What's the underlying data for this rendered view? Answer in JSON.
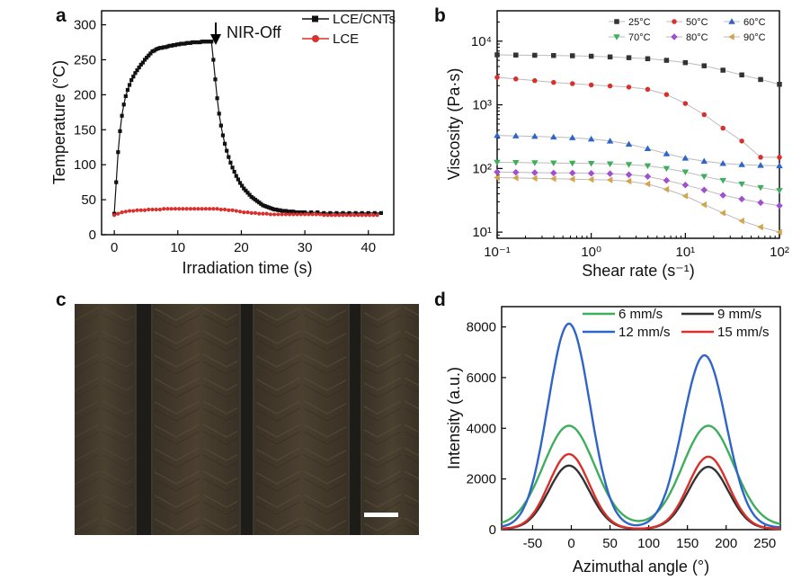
{
  "panels": {
    "a": {
      "letter": "a"
    },
    "b": {
      "letter": "b"
    },
    "c": {
      "letter": "c"
    },
    "d": {
      "letter": "d"
    }
  },
  "chart_data": [
    {
      "id": "a",
      "type": "line",
      "xlabel": "Irradiation time (s)",
      "ylabel": "Temperature (°C)",
      "xlim": [
        -2,
        44
      ],
      "ylim": [
        0,
        320
      ],
      "xticks": [
        "0",
        "10",
        "20",
        "30",
        "40"
      ],
      "yticks": [
        "0",
        "50",
        "100",
        "150",
        "200",
        "250",
        "300"
      ],
      "annotation": "NIR-Off",
      "legend_position": "top-right",
      "series": [
        {
          "name": "LCE/CNTs",
          "color": "#111111",
          "marker": "square",
          "x": [
            0,
            0.3,
            0.6,
            0.9,
            1.2,
            1.5,
            1.8,
            2.1,
            2.4,
            2.7,
            3.0,
            3.3,
            3.6,
            3.9,
            4.2,
            4.5,
            4.8,
            5.1,
            5.4,
            5.7,
            6.0,
            6.3,
            6.6,
            6.9,
            7.2,
            7.5,
            7.8,
            8.1,
            8.4,
            8.7,
            9.0,
            9.3,
            9.6,
            9.9,
            10.2,
            10.5,
            10.8,
            11.1,
            11.4,
            11.7,
            12.0,
            12.3,
            12.6,
            12.9,
            13.2,
            13.5,
            13.8,
            14.1,
            14.4,
            14.7,
            15.0,
            15.3,
            15.6,
            15.9,
            16.2,
            16.5,
            16.8,
            17.1,
            17.4,
            17.7,
            18.0,
            18.3,
            18.6,
            18.9,
            19.2,
            19.5,
            19.8,
            20.1,
            20.4,
            20.7,
            21.0,
            21.3,
            21.6,
            21.9,
            22.2,
            22.5,
            22.8,
            23.1,
            23.4,
            23.7,
            24.0,
            24.3,
            24.6,
            24.9,
            25.2,
            25.5,
            25.8,
            26.1,
            26.4,
            26.7,
            27.0,
            27.3,
            27.6,
            27.9,
            28.2,
            28.5,
            28.8,
            29.1,
            29.4,
            29.7,
            30,
            31,
            32,
            33,
            34,
            35,
            36,
            37,
            38,
            39,
            40,
            41,
            42
          ],
          "y": [
            30,
            75,
            118,
            148,
            170,
            186,
            198,
            207,
            214,
            221,
            226,
            231,
            235,
            239,
            243,
            246,
            250,
            253,
            256,
            259,
            262,
            263,
            265,
            266,
            267,
            267,
            268,
            268,
            269,
            270,
            270,
            271,
            271,
            272,
            272,
            273,
            273,
            273,
            274,
            274,
            274,
            275,
            275,
            275,
            275,
            275,
            276,
            276,
            276,
            276,
            276,
            276,
            250,
            222,
            195,
            173,
            156,
            142,
            130,
            120,
            111,
            103,
            96,
            90,
            84,
            79,
            74,
            70,
            66,
            63,
            60,
            57,
            54,
            52,
            50,
            48,
            46,
            44,
            42,
            41,
            40,
            39,
            38,
            37,
            36,
            36,
            35,
            35,
            34,
            34,
            34,
            33,
            33,
            33,
            33,
            32,
            32,
            32,
            32,
            32,
            32,
            32,
            32,
            31,
            31,
            31,
            31,
            31,
            31,
            31,
            31,
            31,
            31
          ]
        },
        {
          "name": "LCE",
          "color": "#d9302b",
          "marker": "circle",
          "x": [
            0,
            0.6,
            1.2,
            1.8,
            2.4,
            3.0,
            3.6,
            4.2,
            4.8,
            5.4,
            6.0,
            6.6,
            7.2,
            7.8,
            8.4,
            9.0,
            9.6,
            10.2,
            10.8,
            11.4,
            12.0,
            12.6,
            13.2,
            13.8,
            14.4,
            15.0,
            15.6,
            16.2,
            16.8,
            17.4,
            18.0,
            18.6,
            19.2,
            19.8,
            20.4,
            21.0,
            21.6,
            22.2,
            22.8,
            23.4,
            24.0,
            24.6,
            25.2,
            25.8,
            26.4,
            27.0,
            27.6,
            28.2,
            28.8,
            29.4,
            30.0,
            30.6,
            31.2,
            31.8,
            32.4,
            33.0,
            33.6,
            34.2,
            34.8,
            35.4,
            36.0,
            36.6,
            37.2,
            37.8,
            38.4,
            39.0,
            39.6,
            40.2,
            40.8,
            41.4
          ],
          "y": [
            28,
            30,
            32,
            33,
            34,
            34,
            35,
            35,
            35,
            36,
            36,
            36,
            36,
            37,
            37,
            37,
            37,
            37,
            37,
            37,
            37,
            37,
            37,
            37,
            37,
            37,
            37,
            37,
            36,
            36,
            35,
            35,
            34,
            33,
            32,
            32,
            31,
            31,
            30,
            30,
            30,
            29,
            29,
            29,
            29,
            29,
            29,
            29,
            29,
            29,
            29,
            29,
            29,
            29,
            29,
            28,
            28,
            28,
            28,
            28,
            28,
            28,
            28,
            28,
            28,
            28,
            28,
            28,
            28,
            28
          ]
        }
      ]
    },
    {
      "id": "b",
      "type": "line",
      "xscale": "log",
      "yscale": "log",
      "xlabel": "Shear rate (s⁻¹)",
      "ylabel": "Viscosity (Pa·s)",
      "xlim": [
        0.1,
        100
      ],
      "ylim": [
        8,
        30000
      ],
      "xticks": [
        "10⁻¹",
        "10⁰",
        "10¹",
        "10²"
      ],
      "yticks": [
        "10¹",
        "10²",
        "10³",
        "10⁴"
      ],
      "legend_position": "top-right",
      "x": [
        0.1,
        0.158,
        0.251,
        0.398,
        0.631,
        1.0,
        1.585,
        2.512,
        3.981,
        6.31,
        10.0,
        15.85,
        25.12,
        39.81,
        63.1,
        100
      ],
      "series": [
        {
          "name": "25°C",
          "color": "#333333",
          "marker": "square",
          "values": [
            6100,
            6050,
            6000,
            5950,
            5900,
            5800,
            5650,
            5500,
            5300,
            5000,
            4600,
            4100,
            3500,
            2950,
            2500,
            2100
          ]
        },
        {
          "name": "50°C",
          "color": "#d9302b",
          "marker": "circle",
          "values": [
            2700,
            2550,
            2400,
            2250,
            2150,
            2050,
            1980,
            1900,
            1750,
            1450,
            1050,
            700,
            430,
            270,
            150,
            150
          ]
        },
        {
          "name": "60°C",
          "color": "#2f64c8",
          "marker": "triangle-up",
          "values": [
            330,
            325,
            320,
            312,
            305,
            290,
            270,
            240,
            205,
            170,
            145,
            130,
            120,
            115,
            112,
            110
          ]
        },
        {
          "name": "70°C",
          "color": "#3fae5c",
          "marker": "triangle-down",
          "values": [
            125,
            124,
            123,
            122,
            121,
            120,
            118,
            115,
            110,
            100,
            88,
            75,
            65,
            57,
            50,
            45
          ]
        },
        {
          "name": "80°C",
          "color": "#a14fd1",
          "marker": "diamond",
          "values": [
            88,
            87,
            86,
            85,
            85,
            84,
            83,
            80,
            75,
            65,
            55,
            46,
            38,
            33,
            29,
            26
          ]
        },
        {
          "name": "90°C",
          "color": "#d4a44a",
          "marker": "triangle-left",
          "values": [
            72,
            71,
            70,
            69,
            68,
            67,
            66,
            63,
            57,
            47,
            37,
            27,
            20,
            15,
            12,
            10
          ]
        }
      ]
    },
    {
      "id": "c",
      "type": "image",
      "content": "optical micrograph with scale bar"
    },
    {
      "id": "d",
      "type": "line",
      "xlabel": "Azimuthal angle (°)",
      "ylabel": "Intensity (a.u.)",
      "xlim": [
        -90,
        270
      ],
      "ylim": [
        0,
        8800
      ],
      "xticks": [
        "-50",
        "0",
        "50",
        "100",
        "150",
        "200",
        "250"
      ],
      "yticks": [
        "0",
        "2000",
        "4000",
        "6000",
        "8000"
      ],
      "legend_position": "top",
      "series": [
        {
          "name": "6 mm/s",
          "color": "#3fae5c",
          "peaks": [
            {
              "center": -3,
              "height": 3950,
              "width": 33
            },
            {
              "center": 177,
              "height": 3950,
              "width": 33
            }
          ],
          "baseline": 150
        },
        {
          "name": "9 mm/s",
          "color": "#333333",
          "peaks": [
            {
              "center": -3,
              "height": 2500,
              "width": 26
            },
            {
              "center": 177,
              "height": 2450,
              "width": 26
            }
          ],
          "baseline": 30
        },
        {
          "name": "12 mm/s",
          "color": "#2f64c8",
          "peaks": [
            {
              "center": -3,
              "height": 8050,
              "width": 27
            },
            {
              "center": 172,
              "height": 6800,
              "width": 28
            }
          ],
          "baseline": 80
        },
        {
          "name": "15 mm/s",
          "color": "#d9302b",
          "peaks": [
            {
              "center": -3,
              "height": 2950,
              "width": 26
            },
            {
              "center": 177,
              "height": 2850,
              "width": 26
            }
          ],
          "baseline": 30
        }
      ]
    }
  ]
}
